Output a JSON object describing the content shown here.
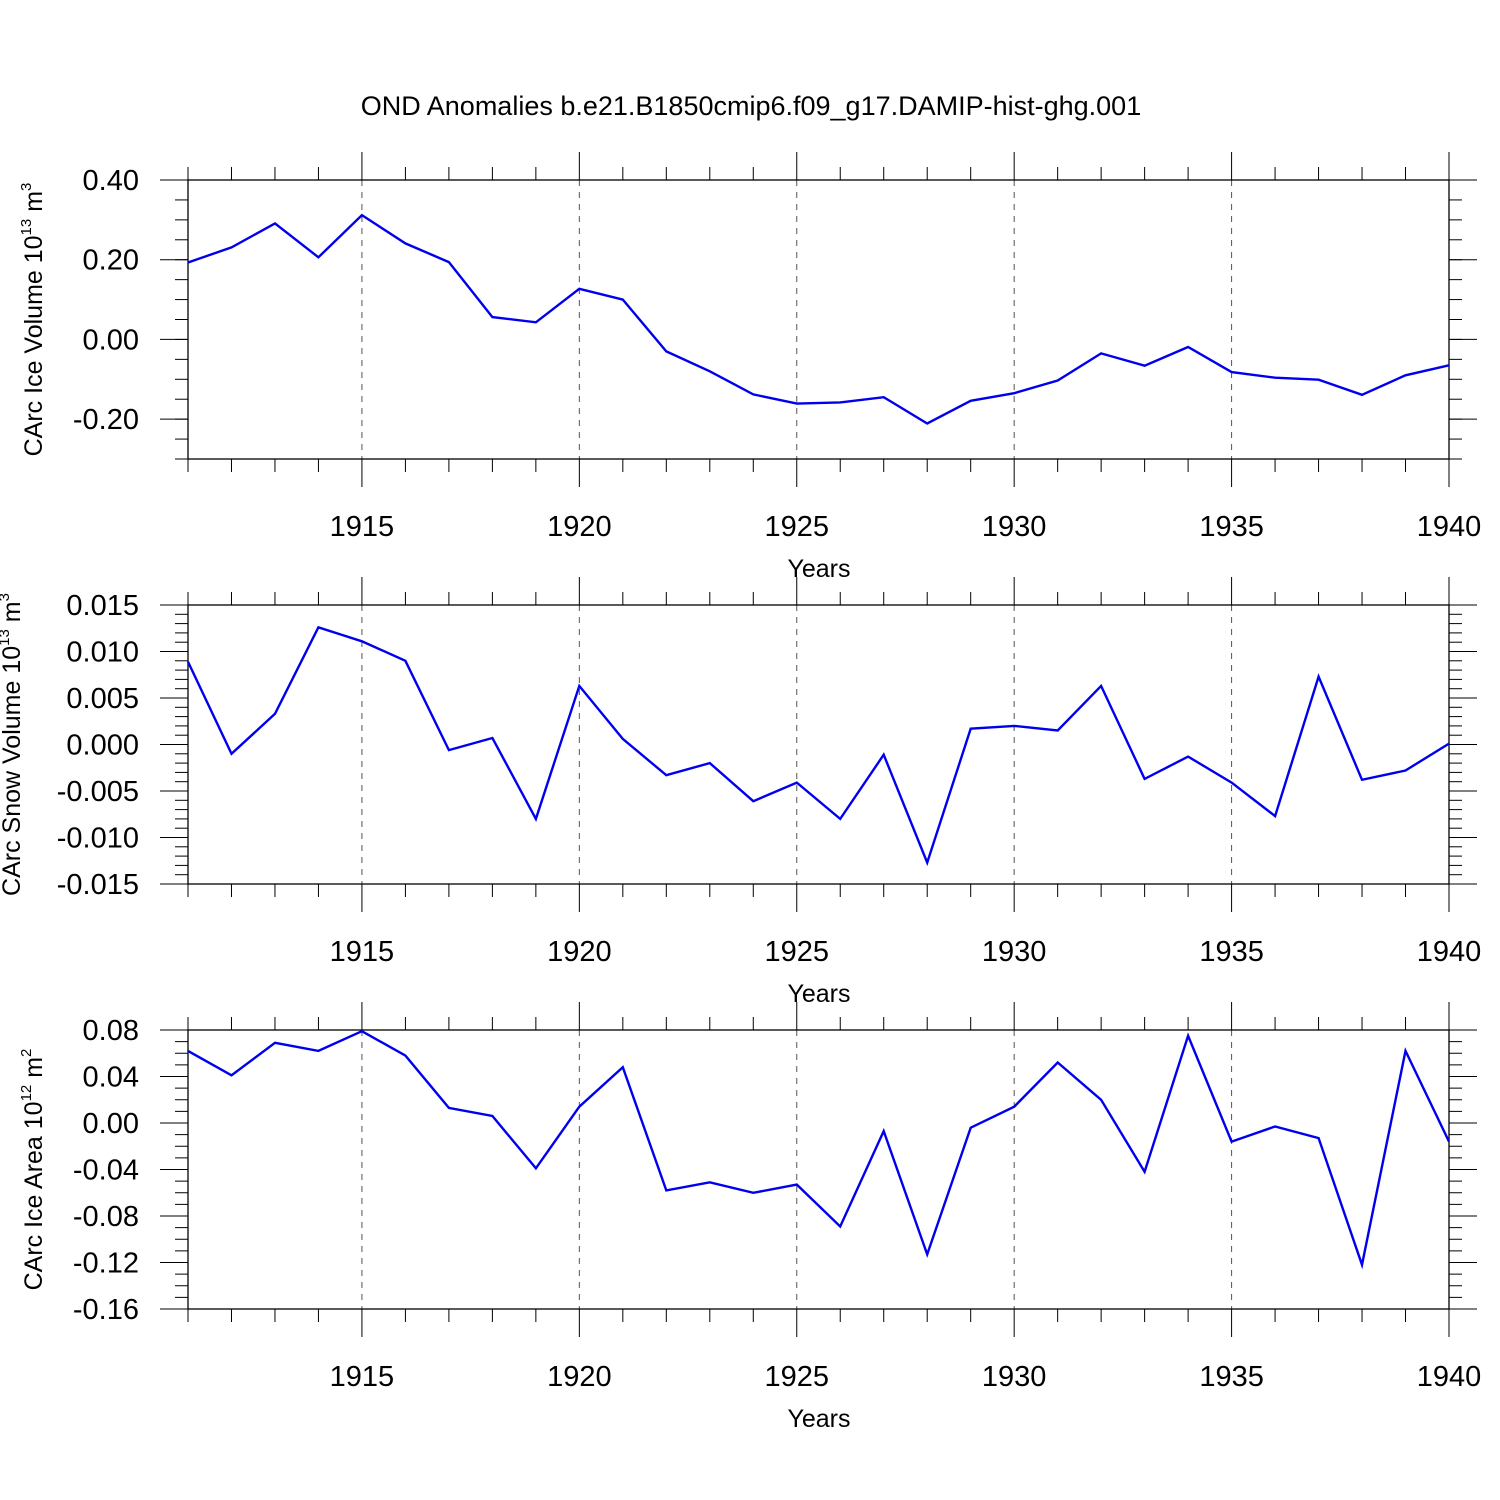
{
  "title": "OND Anomalies b.e21.B1850cmip6.f09_g17.DAMIP-hist-ghg.001",
  "colors": {
    "line": "#0000ee",
    "grid": "#555555",
    "axis": "#000000"
  },
  "chart_data": [
    {
      "type": "line",
      "xlabel": "Years",
      "ylabel": "CArc Ice Volume 10",
      "ylabel_exp": "13",
      "ylabel_unit": " m",
      "ylabel_unit_exp": "3",
      "xlim": [
        1911,
        1940
      ],
      "ylim": [
        -0.3,
        0.4
      ],
      "yticks": [
        0.4,
        0.2,
        0.0,
        -0.2
      ],
      "ytick_labels": [
        "0.40",
        "0.20",
        "0.00",
        "-0.20"
      ],
      "yminor_step": 0.05,
      "xticks": [
        1915,
        1920,
        1925,
        1930,
        1935,
        1940
      ],
      "xtick_labels": [
        "1915",
        "1920",
        "1925",
        "1930",
        "1935",
        "1940"
      ],
      "grid": "vertical-dashed-at-major-x",
      "x": [
        1911,
        1912,
        1913,
        1914,
        1915,
        1916,
        1917,
        1918,
        1919,
        1920,
        1921,
        1922,
        1923,
        1924,
        1925,
        1926,
        1927,
        1928,
        1929,
        1930,
        1931,
        1932,
        1933,
        1934,
        1935,
        1936,
        1937,
        1938,
        1939,
        1940
      ],
      "series": [
        {
          "values": [
            0.193,
            0.231,
            0.291,
            0.206,
            0.312,
            0.241,
            0.194,
            0.056,
            0.043,
            0.127,
            0.1,
            -0.03,
            -0.08,
            -0.138,
            -0.161,
            -0.158,
            -0.145,
            -0.211,
            -0.154,
            -0.135,
            -0.103,
            -0.035,
            -0.066,
            -0.019,
            -0.082,
            -0.096,
            -0.101,
            -0.139,
            -0.09,
            -0.065
          ]
        }
      ]
    },
    {
      "type": "line",
      "xlabel": "Years",
      "ylabel": "CArc Snow Volume 10",
      "ylabel_exp": "13",
      "ylabel_unit": " m",
      "ylabel_unit_exp": "3",
      "xlim": [
        1911,
        1940
      ],
      "ylim": [
        -0.015,
        0.015
      ],
      "yticks": [
        0.015,
        0.01,
        0.005,
        0.0,
        -0.005,
        -0.01,
        -0.015
      ],
      "ytick_labels": [
        "0.015",
        "0.010",
        "0.005",
        "0.000",
        "-0.005",
        "-0.010",
        "-0.015"
      ],
      "yminor_step": 0.001,
      "xticks": [
        1915,
        1920,
        1925,
        1930,
        1935,
        1940
      ],
      "xtick_labels": [
        "1915",
        "1920",
        "1925",
        "1930",
        "1935",
        "1940"
      ],
      "grid": "vertical-dashed-at-major-x",
      "x": [
        1911,
        1912,
        1913,
        1914,
        1915,
        1916,
        1917,
        1918,
        1919,
        1920,
        1921,
        1922,
        1923,
        1924,
        1925,
        1926,
        1927,
        1928,
        1929,
        1930,
        1931,
        1932,
        1933,
        1934,
        1935,
        1936,
        1937,
        1938,
        1939,
        1940
      ],
      "series": [
        {
          "values": [
            0.0089,
            -0.001,
            0.0033,
            0.0126,
            0.0111,
            0.009,
            -0.0006,
            0.0007,
            -0.008,
            0.0063,
            0.0006,
            -0.0033,
            -0.002,
            -0.0061,
            -0.0041,
            -0.008,
            -0.0011,
            -0.0127,
            0.0017,
            0.002,
            0.0015,
            0.0063,
            -0.0037,
            -0.0013,
            -0.0041,
            -0.0077,
            0.0073,
            -0.0038,
            -0.0028,
            0.0001
          ]
        }
      ]
    },
    {
      "type": "line",
      "xlabel": "Years",
      "ylabel": "CArc Ice Area 10",
      "ylabel_exp": "12",
      "ylabel_unit": " m",
      "ylabel_unit_exp": "2",
      "xlim": [
        1911,
        1940
      ],
      "ylim": [
        -0.16,
        0.08
      ],
      "yticks": [
        0.08,
        0.04,
        0.0,
        -0.04,
        -0.08,
        -0.12,
        -0.16
      ],
      "ytick_labels": [
        "0.08",
        "0.04",
        "0.00",
        "-0.04",
        "-0.08",
        "-0.12",
        "-0.16"
      ],
      "yminor_step": 0.01,
      "xticks": [
        1915,
        1920,
        1925,
        1930,
        1935,
        1940
      ],
      "xtick_labels": [
        "1915",
        "1920",
        "1925",
        "1930",
        "1935",
        "1940"
      ],
      "grid": "vertical-dashed-at-major-x",
      "x": [
        1911,
        1912,
        1913,
        1914,
        1915,
        1916,
        1917,
        1918,
        1919,
        1920,
        1921,
        1922,
        1923,
        1924,
        1925,
        1926,
        1927,
        1928,
        1929,
        1930,
        1931,
        1932,
        1933,
        1934,
        1935,
        1936,
        1937,
        1938,
        1939,
        1940
      ],
      "series": [
        {
          "values": [
            0.062,
            0.041,
            0.069,
            0.062,
            0.079,
            0.058,
            0.013,
            0.006,
            -0.039,
            0.014,
            0.048,
            -0.058,
            -0.051,
            -0.06,
            -0.053,
            -0.089,
            -0.007,
            -0.113,
            -0.004,
            0.014,
            0.052,
            0.02,
            -0.042,
            0.075,
            -0.016,
            -0.003,
            -0.013,
            -0.122,
            0.062,
            -0.016
          ]
        }
      ]
    }
  ]
}
